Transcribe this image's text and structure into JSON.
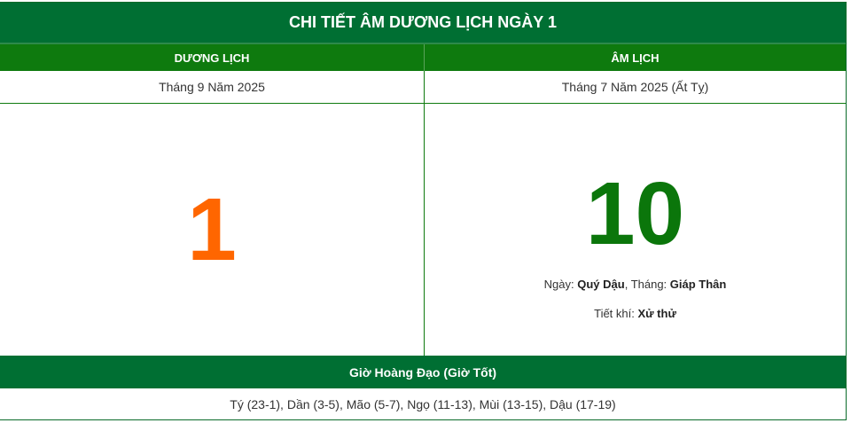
{
  "title": "CHI TIẾT ÂM DƯƠNG LỊCH NGÀY 1",
  "solar": {
    "header": "DƯƠNG LỊCH",
    "month": "Tháng 9 Năm 2025",
    "day": "1"
  },
  "lunar": {
    "header": "ÂM LỊCH",
    "month": "Tháng 7 Năm 2025 (Ất Tỵ)",
    "day": "10",
    "day_label": "Ngày: ",
    "day_value": "Quý Dậu",
    "month_label": ", Tháng: ",
    "month_value": "Giáp Thân",
    "tietkhi_label": "Tiết khí: ",
    "tietkhi_value": "Xử thử"
  },
  "good_hours": {
    "header": "Giờ Hoàng Đạo (Giờ Tốt)",
    "list": "Tý (23-1), Dần (3-5), Mão (5-7), Ngọ (11-13), Mùi (13-15), Dậu (17-19)"
  },
  "colors": {
    "title_bg": "#006f33",
    "header_bg": "#0e7a0e",
    "solar_day": "#ff6600",
    "lunar_day": "#0b760b"
  }
}
